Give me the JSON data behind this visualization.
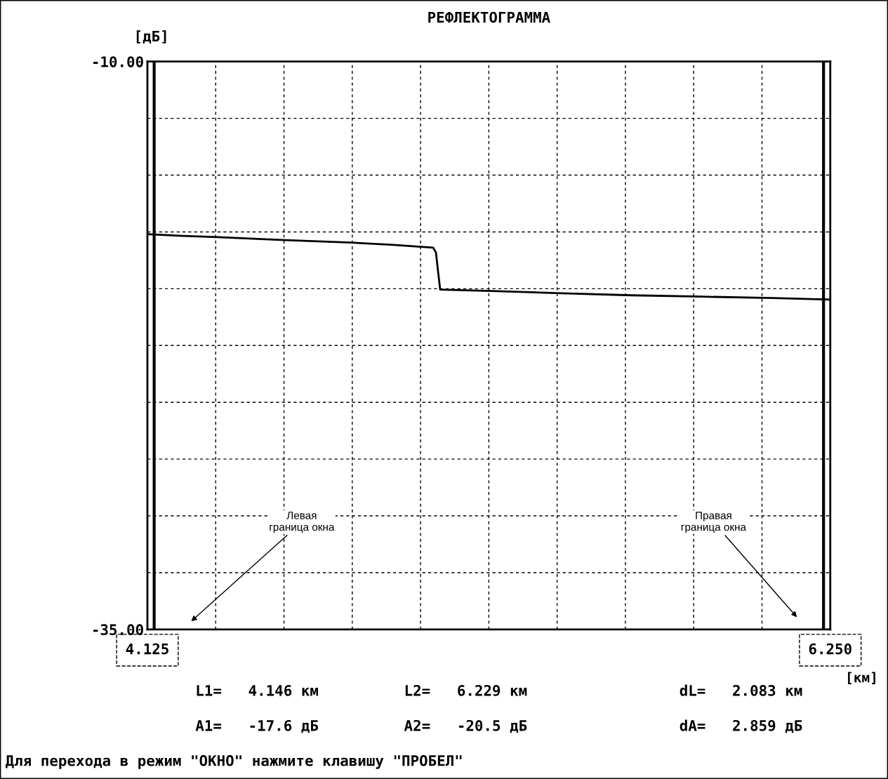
{
  "chart_data": {
    "type": "line",
    "title": "РЕФЛЕКТОГРАММА",
    "ylabel": "[дБ]",
    "xlabel": "[км]",
    "x": [
      4.125,
      4.212,
      4.343,
      4.54,
      4.758,
      4.889,
      5.014,
      5.023,
      5.029,
      5.036,
      5.195,
      5.414,
      5.632,
      5.85,
      6.069,
      6.25
    ],
    "series": [
      {
        "color": "#000000",
        "values": [
          -17.6,
          -17.66,
          -17.73,
          -17.85,
          -17.97,
          -18.07,
          -18.19,
          -18.41,
          -19.18,
          -20.04,
          -20.1,
          -20.2,
          -20.29,
          -20.35,
          -20.41,
          -20.48
        ]
      }
    ],
    "xlim": [
      4.125,
      6.25
    ],
    "xticks": [
      {
        "value": 4.125,
        "label": "4.125"
      },
      {
        "value": 4.3375,
        "label": null
      },
      {
        "value": 4.55,
        "label": null
      },
      {
        "value": 4.7625,
        "label": null
      },
      {
        "value": 4.975,
        "label": null
      },
      {
        "value": 5.1875,
        "label": null
      },
      {
        "value": 5.4,
        "label": null
      },
      {
        "value": 5.6125,
        "label": null
      },
      {
        "value": 5.825,
        "label": null
      },
      {
        "value": 6.0375,
        "label": null
      },
      {
        "value": 6.25,
        "label": "6.250"
      }
    ],
    "ylim": [
      -35,
      -10
    ],
    "yticks": [
      {
        "value": -35,
        "label": "-35.00"
      },
      {
        "value": -32.5,
        "label": null
      },
      {
        "value": -30,
        "label": null
      },
      {
        "value": -27.5,
        "label": null
      },
      {
        "value": -25,
        "label": null
      },
      {
        "value": -22.5,
        "label": null
      },
      {
        "value": -20,
        "label": null
      },
      {
        "value": -17.5,
        "label": null
      },
      {
        "value": -15,
        "label": null
      },
      {
        "value": -12.5,
        "label": null
      },
      {
        "value": -10,
        "label": "-10.00"
      }
    ],
    "ref_lines": [
      {
        "axis": "x",
        "value": 4.146,
        "color": "#000000"
      },
      {
        "axis": "x",
        "value": 6.229,
        "color": "#000000"
      }
    ],
    "annotations": [
      "Левая\nграница окна",
      "Правая\nграница окна",
      "L1=   4.146 км",
      "L2=   6.229 км",
      "dL=   2.083 км",
      "A1=   -17.6 дБ",
      "A2=   -20.5 дБ",
      "dA=   2.859 дБ",
      "Для перехода в режим \"ОКНО\" нажмите клавишу \"ПРОБЕЛ\""
    ],
    "grid": true,
    "marker": "none",
    "line_style": "solid"
  }
}
